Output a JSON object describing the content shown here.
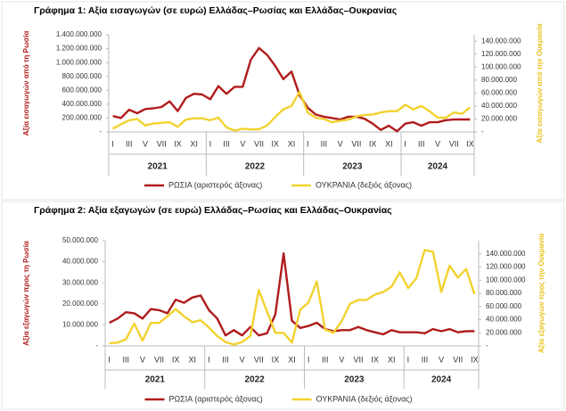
{
  "chart_data": [
    {
      "type": "line",
      "title": "Γράφημα 1: Αξία εισαγωγών (σε ευρώ) Ελλάδας–Ρωσίας και Ελλάδας–Ουκρανίας",
      "y_label": "Αξία εισαγωγών από τη Ρωσία",
      "y2_label": "Αξία εισαγωγών από την Ουκρανία",
      "categories": [
        "I",
        null,
        "III",
        null,
        "V",
        null,
        "VII",
        null,
        "IX",
        null,
        "XI",
        null,
        "I",
        null,
        "III",
        null,
        "V",
        null,
        "VII",
        null,
        "IX",
        null,
        "XI",
        null,
        "I",
        null,
        "III",
        null,
        "V",
        null,
        "VII",
        null,
        "IX",
        null,
        "XI",
        null,
        "I",
        null,
        "III",
        null,
        "V",
        null,
        "VII",
        null,
        "IX"
      ],
      "years": [
        "2021",
        "2022",
        "2023",
        "2024"
      ],
      "ylim": [
        0,
        1400000000
      ],
      "yticks": [
        {
          "value": 0,
          "label": "-"
        },
        {
          "value": 200000000,
          "label": "200.000.000"
        },
        {
          "value": 400000000,
          "label": "400.000.000"
        },
        {
          "value": 600000000,
          "label": "600.000.000"
        },
        {
          "value": 800000000,
          "label": "800.000.000"
        },
        {
          "value": 1000000000,
          "label": "1.000.000.000"
        },
        {
          "value": 1200000000,
          "label": "1.200.000.000"
        },
        {
          "value": 1400000000,
          "label": "1.400.000.000"
        }
      ],
      "y2lim": [
        0,
        150000000
      ],
      "y2ticks": [
        {
          "value": 0,
          "label": "-"
        },
        {
          "value": 20000000,
          "label": "20.000.000"
        },
        {
          "value": 40000000,
          "label": "40.000.000"
        },
        {
          "value": 60000000,
          "label": "60.000.000"
        },
        {
          "value": 80000000,
          "label": "80.000.000"
        },
        {
          "value": 100000000,
          "label": "100.000.000"
        },
        {
          "value": 120000000,
          "label": "120.000.000"
        },
        {
          "value": 140000000,
          "label": "140.000.000"
        }
      ],
      "grid": false,
      "legend": "bottom",
      "series": [
        {
          "name": "ΡΩΣΙΑ (αριστερός άξονας)",
          "color": "#b01c1c",
          "axis": "y",
          "values": [
            230000000,
            200000000,
            320000000,
            270000000,
            330000000,
            340000000,
            360000000,
            440000000,
            300000000,
            490000000,
            550000000,
            540000000,
            470000000,
            660000000,
            550000000,
            650000000,
            650000000,
            1040000000,
            1210000000,
            1110000000,
            950000000,
            760000000,
            870000000,
            530000000,
            350000000,
            250000000,
            220000000,
            200000000,
            180000000,
            220000000,
            220000000,
            190000000,
            120000000,
            30000000,
            90000000,
            10000000,
            120000000,
            140000000,
            90000000,
            140000000,
            140000000,
            170000000,
            180000000,
            180000000,
            180000000
          ]
        },
        {
          "name": "ΟΥΚΡΑΝΙΑ (δεξιός άξονας)",
          "color": "#f2d22e",
          "axis": "y2",
          "values": [
            5000000,
            12000000,
            18000000,
            20000000,
            10000000,
            13000000,
            14000000,
            15000000,
            8000000,
            19000000,
            21000000,
            21000000,
            18000000,
            22000000,
            7000000,
            2000000,
            5000000,
            4000000,
            4000000,
            10000000,
            23000000,
            35000000,
            40000000,
            62000000,
            30000000,
            22000000,
            20000000,
            15000000,
            17000000,
            19000000,
            24000000,
            26000000,
            27000000,
            30000000,
            32000000,
            32000000,
            42000000,
            35000000,
            40000000,
            32000000,
            22000000,
            22000000,
            30000000,
            28000000,
            38000000
          ]
        }
      ]
    },
    {
      "type": "line",
      "title": "Γράφημα 2: Αξία εξαγωγών (σε ευρώ) Ελλάδας–Ρωσίας και Ελλάδας–Ουκρανίας",
      "y_label": "Αξία εξαγωγών προς τη Ρωσία",
      "y2_label": "Αξία εξαγωγών προς την Ουκρανία",
      "categories": [
        "I",
        null,
        "III",
        null,
        "V",
        null,
        "VII",
        null,
        "IX",
        null,
        "XI",
        null,
        "I",
        null,
        "III",
        null,
        "V",
        null,
        "VII",
        null,
        "IX",
        null,
        "XI",
        null,
        "I",
        null,
        "III",
        null,
        "V",
        null,
        "VII",
        null,
        "IX",
        null,
        "XI",
        null,
        "I",
        null,
        "III",
        null,
        "V",
        null,
        "VII",
        null,
        "IX"
      ],
      "years": [
        "2021",
        "2022",
        "2023",
        "2024"
      ],
      "ylim": [
        0,
        50000000
      ],
      "yticks": [
        {
          "value": 0,
          "label": "-"
        },
        {
          "value": 10000000,
          "label": "10.000.000"
        },
        {
          "value": 20000000,
          "label": "20.000.000"
        },
        {
          "value": 30000000,
          "label": "30.000.000"
        },
        {
          "value": 40000000,
          "label": "40.000.000"
        },
        {
          "value": 50000000,
          "label": "50.000.000"
        }
      ],
      "y2lim": [
        0,
        160000000
      ],
      "y2ticks": [
        {
          "value": 0,
          "label": "-"
        },
        {
          "value": 20000000,
          "label": "20.000.000"
        },
        {
          "value": 40000000,
          "label": "40.000.000"
        },
        {
          "value": 60000000,
          "label": "60.000.000"
        },
        {
          "value": 80000000,
          "label": "80.000.000"
        },
        {
          "value": 100000000,
          "label": "100.000.000"
        },
        {
          "value": 120000000,
          "label": "120.000.000"
        },
        {
          "value": 140000000,
          "label": "140.000.000"
        }
      ],
      "grid": false,
      "legend": "bottom",
      "series": [
        {
          "name": "ΡΩΣΙΑ (αριστερός άξονας)",
          "color": "#b01c1c",
          "axis": "y",
          "values": [
            11000000,
            13000000,
            16000000,
            15500000,
            13000000,
            17500000,
            17000000,
            15500000,
            22000000,
            20500000,
            23000000,
            24000000,
            17000000,
            13000000,
            5000000,
            7500000,
            5000000,
            9000000,
            5000000,
            6000000,
            15000000,
            44000000,
            12000000,
            8500000,
            9500000,
            11000000,
            8000000,
            7000000,
            7500000,
            7500000,
            9000000,
            7500000,
            6500000,
            5500000,
            7500000,
            6500000,
            6500000,
            6500000,
            6000000,
            8000000,
            7000000,
            8000000,
            6500000,
            7000000,
            7000000
          ]
        },
        {
          "name": "ΟΥΚΡΑΝΙΑ (δεξιός άξονας)",
          "color": "#f2d22e",
          "axis": "y2",
          "values": [
            4000000,
            5000000,
            10000000,
            34000000,
            8000000,
            35000000,
            35000000,
            45000000,
            56000000,
            45000000,
            36000000,
            39000000,
            28000000,
            15000000,
            6000000,
            2000000,
            6000000,
            15000000,
            85000000,
            52000000,
            20000000,
            20000000,
            5000000,
            55000000,
            66000000,
            98000000,
            25000000,
            20000000,
            38000000,
            64000000,
            70000000,
            70000000,
            78000000,
            82000000,
            90000000,
            112000000,
            88000000,
            103000000,
            146000000,
            143000000,
            82000000,
            122000000,
            104000000,
            117000000,
            79000000
          ]
        }
      ]
    }
  ]
}
